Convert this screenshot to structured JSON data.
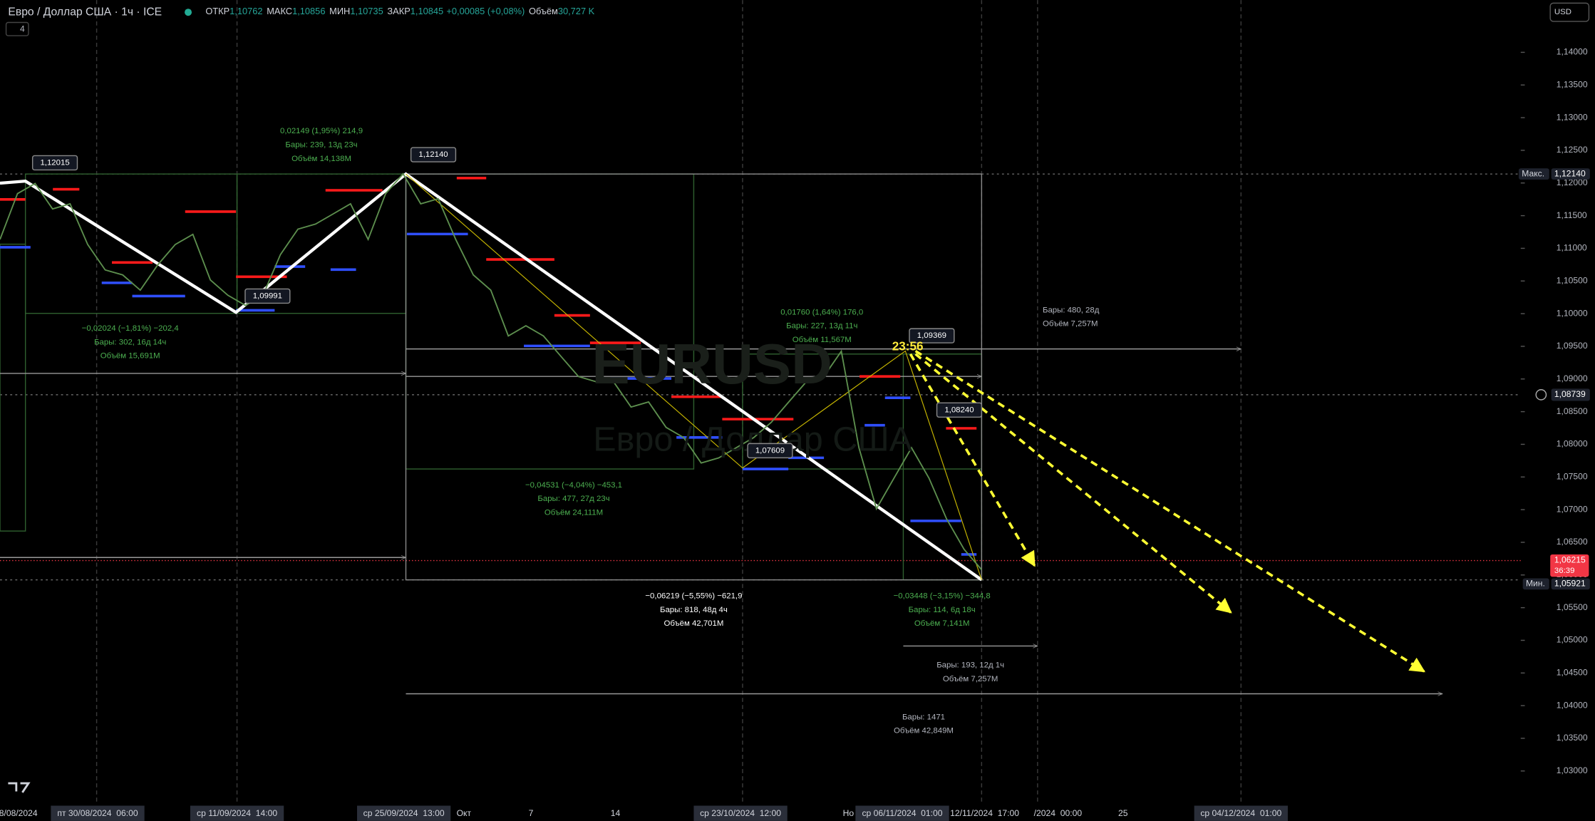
{
  "header": {
    "title": "Евро / Доллар США · 1ч · ICE",
    "open_label": "ОТКР",
    "open": "1,10762",
    "high_label": "МАКС",
    "high": "1,10856",
    "low_label": "МИН",
    "low": "1,10735",
    "close_label": "ЗАКР",
    "close": "1,10845",
    "change": "+0,00085 (+0,08%)",
    "volume_label": "Объём",
    "volume": "30,727 K",
    "indicator_count": "4",
    "currency": "USD"
  },
  "chart_data": {
    "type": "line",
    "color": "#5d8f4e",
    "grid": false,
    "ylim": [
      1.025,
      1.148
    ],
    "yticks": [
      {
        "value": 1.14,
        "label": "1,14000"
      },
      {
        "value": 1.135,
        "label": "1,13500"
      },
      {
        "value": 1.13,
        "label": "1,13000"
      },
      {
        "value": 1.125,
        "label": "1,12500"
      },
      {
        "value": 1.12,
        "label": "1,12000"
      },
      {
        "value": 1.115,
        "label": "1,11500"
      },
      {
        "value": 1.11,
        "label": "1,11000"
      },
      {
        "value": 1.105,
        "label": "1,10500"
      },
      {
        "value": 1.1,
        "label": "1,10000"
      },
      {
        "value": 1.095,
        "label": "1,09500"
      },
      {
        "value": 1.09,
        "label": "1,09000"
      },
      {
        "value": 1.085,
        "label": "1,08500"
      },
      {
        "value": 1.08,
        "label": "1,08000"
      },
      {
        "value": 1.075,
        "label": "1,07500"
      },
      {
        "value": 1.07,
        "label": "1,07000"
      },
      {
        "value": 1.065,
        "label": "1,06500"
      },
      {
        "value": 1.06,
        "label": "1,06000"
      },
      {
        "value": 1.055,
        "label": "1,05500"
      },
      {
        "value": 1.05,
        "label": "1,05000"
      },
      {
        "value": 1.045,
        "label": "1,04500"
      },
      {
        "value": 1.04,
        "label": "1,04000"
      },
      {
        "value": 1.035,
        "label": "1,03500"
      },
      {
        "value": 1.03,
        "label": "1,03000"
      }
    ],
    "values": [
      1.11137,
      1.11837,
      1.11993,
      1.11604,
      1.11682,
      1.11059,
      1.1067,
      1.10593,
      1.10359,
      1.10748,
      1.11059,
      1.11215,
      1.10515,
      1.10281,
      1.10126,
      1.10281,
      1.10904,
      1.11293,
      1.11371,
      1.11526,
      1.11682,
      1.11137,
      1.11837,
      1.1214,
      1.11682,
      1.1176,
      1.11137,
      1.10593,
      1.10359,
      1.09659,
      1.09815,
      1.09659,
      1.09348,
      1.09037,
      1.08959,
      1.08959,
      1.0857,
      1.08648,
      1.08259,
      1.08103,
      1.07714,
      1.07792,
      1.07948,
      1.08103,
      1.08337,
      1.08648,
      1.08959,
      1.09037,
      1.09426,
      1.07948,
      1.07014,
      1.07481,
      1.07948,
      1.07481,
      1.06859,
      1.06392,
      1.06081
    ]
  },
  "price_labels": {
    "max_label": "Макс.",
    "max": "1,12140",
    "crosshair": "1,08739",
    "last": "1,06215",
    "countdown": "36:39",
    "min_label": "Мин.",
    "min": "1,05921"
  },
  "time_axis": [
    "8/08/2024",
    "пт 30/08/2024  06:00",
    "ср 11/09/2024  14:00",
    "ср 25/09/2024  13:00",
    "Окт",
    "7",
    "14",
    "ср 23/10/2024  12:00",
    "Но",
    "ср 06/11/2024  01:00",
    "12/11/2024  17:00",
    "/2024  00:00",
    "25",
    "ср 04/12/2024  01:00"
  ],
  "pivots": [
    "1,12015",
    "1,12140",
    "1,09991",
    "1,09369",
    "1,07609",
    "1,08240"
  ],
  "measures": [
    [
      "0,02149 (1,95%) 214,9",
      "Бары: 239, 13д 23ч",
      "Объём 14,138M"
    ],
    [
      "−0,02024 (−1,81%) −202,4",
      "Бары: 302, 16д 14ч",
      "Объём 15,691M"
    ],
    [
      "0,01760 (1,64%) 176,0",
      "Бары: 227, 13д 11ч",
      "Объём 11,567M"
    ],
    [
      "−0,04531 (−4,04%) −453,1",
      "Бары: 477, 27д 23ч",
      "Объём 24,111M"
    ],
    [
      "−0,06219 (−5,55%) −621,9",
      "Бары: 818, 48д 4ч",
      "Объём 42,701M"
    ],
    [
      "−0,03448 (−3,15%) −344,8",
      "Бары: 114, 6д 18ч",
      "Объём 7,141M"
    ],
    [
      "Бары: 480, 28д",
      "Объём 7,257M"
    ],
    [
      "Бары: 193, 12д 1ч",
      "Объём 7,257M"
    ],
    [
      "Бары: 1471",
      "Объём 42,849M"
    ]
  ],
  "timer": "23:56",
  "watermark": {
    "symbol": "EURUSD",
    "name": "Евро / Доллар США"
  }
}
